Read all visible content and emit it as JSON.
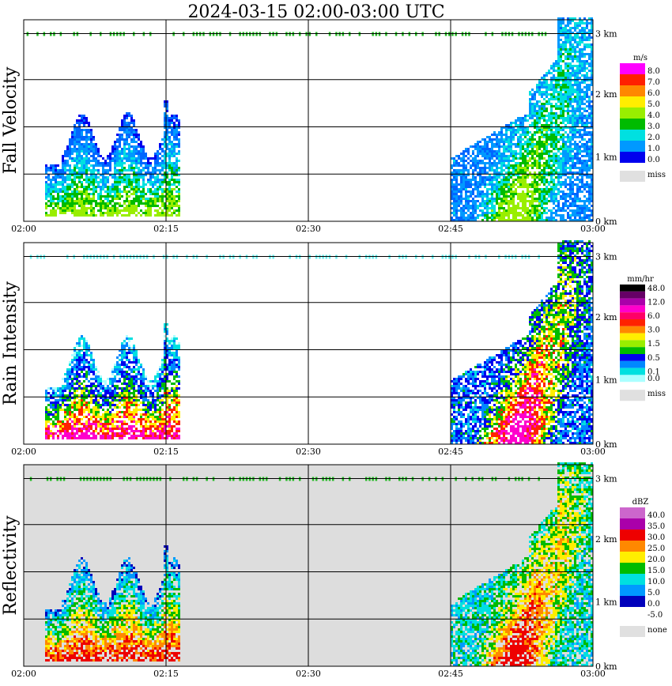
{
  "chart_data": {
    "type": "heatmap",
    "title": "2024-03-15  02:00-03:00 UTC",
    "x_ticks": [
      "02:00",
      "02:15",
      "02:30",
      "02:45",
      "03:00"
    ],
    "x_range_min": [
      0,
      60
    ],
    "y_ticks": [
      "0 km",
      "1 km",
      "2 km",
      "3 km"
    ],
    "y_range_km": [
      0,
      3.2
    ],
    "grid": true,
    "panels": [
      {
        "name": "fall-velocity",
        "ylabel": "Fall Velocity",
        "background": "#ffffff",
        "colorbar": {
          "unit": "m/s",
          "levels": [
            "8.0",
            "7.0",
            "6.0",
            "5.0",
            "4.0",
            "3.0",
            "2.0",
            "1.0",
            "0.0"
          ],
          "colors": [
            "#ff00ff",
            "#ff2000",
            "#ff8800",
            "#ffee00",
            "#99ee00",
            "#00bb00",
            "#00e0e0",
            "#0099ff",
            "#0000ee"
          ],
          "missing_label": "miss",
          "missing_color": "#e0e0e0"
        },
        "echo_colors": [
          "#0000ee",
          "#0066ff",
          "#0099ff",
          "#00e0e0",
          "#00bb00",
          "#99ee00"
        ],
        "cloud_top_color": "#22bb22"
      },
      {
        "name": "rain-intensity",
        "ylabel": "Rain Intensity",
        "background": "#ffffff",
        "colorbar": {
          "unit": "mm/hr",
          "levels": [
            "48.0",
            "",
            "12.0",
            "",
            "6.0",
            "",
            "3.0",
            "",
            "1.5",
            "",
            "0.5",
            "",
            "0.1",
            "0.0"
          ],
          "colors": [
            "#000000",
            "#660066",
            "#aa00aa",
            "#ff00cc",
            "#ff0066",
            "#ff2200",
            "#ff8800",
            "#ffee00",
            "#99ee00",
            "#00bb00",
            "#0000ee",
            "#0088ff",
            "#00e0e0",
            "#aaffff"
          ],
          "missing_label": "miss",
          "missing_color": "#e0e0e0"
        },
        "echo_colors": [
          "#aaffff",
          "#00e0e0",
          "#0088ff",
          "#0000ee",
          "#00bb00",
          "#ffee00",
          "#ff2200",
          "#ff00cc"
        ],
        "cloud_top_color": "#66eeee"
      },
      {
        "name": "reflectivity",
        "ylabel": "Reflectivity",
        "background": "#dddddd",
        "colorbar": {
          "unit": "dBZ",
          "levels": [
            "40.0",
            "35.0",
            "30.0",
            "25.0",
            "20.0",
            "15.0",
            "10.0",
            "5.0",
            "0.0",
            "-5.0"
          ],
          "colors": [
            "#cc66cc",
            "#aa00aa",
            "#ee0000",
            "#ff8800",
            "#ffee00",
            "#00bb00",
            "#00e0e0",
            "#0099ff",
            "#0000bb",
            "#ffffff"
          ],
          "missing_label": "none",
          "missing_color": "#e0e0e0"
        },
        "echo_colors": [
          "#0000bb",
          "#0099ff",
          "#00e0e0",
          "#00bb00",
          "#ffee00",
          "#ff8800",
          "#ee0000"
        ],
        "cloud_top_color": "#22bb22"
      }
    ]
  }
}
